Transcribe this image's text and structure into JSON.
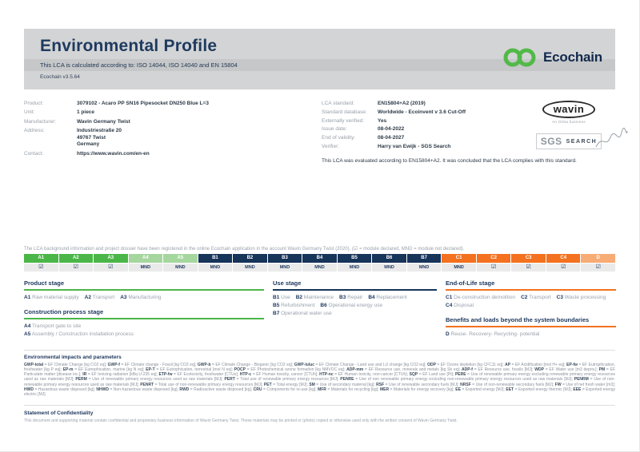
{
  "header": {
    "title": "Environmental Profile",
    "subtitle": "This LCA is calculated according to: ISO 14044, ISO 14040 and EN 15804",
    "version": "Ecochain v3.5.64",
    "logo_text": "Ecochain"
  },
  "product_info": {
    "rows": [
      {
        "label": "Product:",
        "value": "3079102 - Acaro PP SN16 Pipesocket DN250 Blue L=3"
      },
      {
        "label": "Unit:",
        "value": "1 piece"
      },
      {
        "label": "Manufacturer:",
        "value": "Wavin Germany Twist"
      },
      {
        "label": "Address:",
        "value": "Industriestraße 20\n49767 Twist\nGermany"
      },
      {
        "label": "Contact:",
        "value": "https://www.wavin.com/en-en"
      }
    ]
  },
  "lca_info": {
    "rows": [
      {
        "label": "LCA standard:",
        "value": "EN15804+A2 (2019)"
      },
      {
        "label": "Standard database:",
        "value": "Worldwide - Ecoinvent v 3.6 Cut-Off"
      },
      {
        "label": "Externally verified:",
        "value": "Yes"
      },
      {
        "label": "Issue date:",
        "value": "08-04-2022"
      },
      {
        "label": "End of validity:",
        "value": "08-04-2027"
      },
      {
        "label": "Verifier:",
        "value": "Harry van Ewijk - SGS Search"
      }
    ],
    "evaluation_note": "This LCA was evaluated according to EN15804+A2. It was concluded that the LCA complies with this standard."
  },
  "logos": {
    "wavin_text": "wavin",
    "wavin_tagline": "An Orbia business",
    "sgs_text": "SGS",
    "search_text": "SEARCH"
  },
  "registration_note": "The LCA background information and project dossier have been registered in the online Ecochain application in the account Wavin Germany Twist (2020). (☑ = module declared, MND = module not declared).",
  "modules": {
    "check_symbol": "☑",
    "mnd_label": "MND",
    "cells": [
      {
        "id": "A1",
        "group": "green",
        "declared": true
      },
      {
        "id": "A2",
        "group": "green",
        "declared": true
      },
      {
        "id": "A3",
        "group": "green",
        "declared": true
      },
      {
        "id": "A4",
        "group": "lightgreen",
        "declared": false
      },
      {
        "id": "A5",
        "group": "lightgreen",
        "declared": false
      },
      {
        "id": "B1",
        "group": "navy",
        "declared": false
      },
      {
        "id": "B2",
        "group": "navy",
        "declared": false
      },
      {
        "id": "B3",
        "group": "navy",
        "declared": false
      },
      {
        "id": "B4",
        "group": "navy",
        "declared": false
      },
      {
        "id": "B5",
        "group": "navy",
        "declared": false
      },
      {
        "id": "B6",
        "group": "navy",
        "declared": false
      },
      {
        "id": "B7",
        "group": "navy",
        "declared": false
      },
      {
        "id": "C1",
        "group": "orange",
        "declared": false
      },
      {
        "id": "C2",
        "group": "orange",
        "declared": true
      },
      {
        "id": "C3",
        "group": "orange",
        "declared": true
      },
      {
        "id": "C4",
        "group": "orange",
        "declared": true
      },
      {
        "id": "D",
        "group": "lightorange",
        "declared": true
      }
    ]
  },
  "stages": {
    "product": {
      "title": "Product stage",
      "items": [
        {
          "code": "A1",
          "label": "Raw material supply"
        },
        {
          "code": "A2",
          "label": "Transport"
        },
        {
          "code": "A3",
          "label": "Manufacturing"
        }
      ]
    },
    "construction": {
      "title": "Construction process stage",
      "items": [
        {
          "code": "A4",
          "label": "Transport gate to site"
        },
        {
          "code": "A5",
          "label": "Assembly / Construction installation process"
        }
      ]
    },
    "use": {
      "title": "Use stage",
      "items": [
        {
          "code": "B1",
          "label": "Use"
        },
        {
          "code": "B2",
          "label": "Maintenance"
        },
        {
          "code": "B3",
          "label": "Repair"
        },
        {
          "code": "B4",
          "label": "Replacement"
        },
        {
          "code": "B5",
          "label": "Refurbishment"
        },
        {
          "code": "B6",
          "label": "Operational energy use"
        },
        {
          "code": "B7",
          "label": "Operational water use"
        }
      ]
    },
    "end_of_life": {
      "title": "End-of-Life stage",
      "items": [
        {
          "code": "C1",
          "label": "De-construction demolition"
        },
        {
          "code": "C2",
          "label": "Transport"
        },
        {
          "code": "C3",
          "label": "Waste processing"
        },
        {
          "code": "C4",
          "label": "Disposal"
        }
      ]
    },
    "benefits": {
      "title": "Benefits and loads beyond the system boundaries",
      "items": [
        {
          "code": "D",
          "label": "Reuse- Recovery- Recycling- potential"
        }
      ]
    }
  },
  "glossary": {
    "title": "Environmental impacts and parameters",
    "terms": [
      {
        "abbr": "GWP-total",
        "def": "EF Climate Change [kg CO2 eq]"
      },
      {
        "abbr": "GWP-f",
        "def": "EF Climate change - Fossil [kg CO2 eq]"
      },
      {
        "abbr": "GWP-b",
        "def": "EF Climate Change - Biogenic [kg CO2 eq]"
      },
      {
        "abbr": "GWP-luluc",
        "def": "EF Climate Change - Land use and LU change [kg CO2 eq]"
      },
      {
        "abbr": "ODP",
        "def": "EF Ozone depletion [kg CFC11 eq]"
      },
      {
        "abbr": "AP",
        "def": "EF Acidification [mol H+ eq]"
      },
      {
        "abbr": "EP-fw",
        "def": "EF Eutrophication, freshwater [kg P eq]"
      },
      {
        "abbr": "EP-m",
        "def": "EF Eutrophication, marine [kg N eq]"
      },
      {
        "abbr": "EP-T",
        "def": "EF Eutrophication, terrestrial [mol N eq]"
      },
      {
        "abbr": "POCP",
        "def": "EF Photochemical ozone formation [kg NMVOC eq]"
      },
      {
        "abbr": "ADP-mm",
        "def": "EF Resource use, minerals and metals [kg Sb eq]"
      },
      {
        "abbr": "ADP-f",
        "def": "EF Resource use, fossils [MJ]"
      },
      {
        "abbr": "WDP",
        "def": "EF Water use [m3 depriv.]"
      },
      {
        "abbr": "PM",
        "def": "EF Particulate matter [disease inc.]"
      },
      {
        "abbr": "IR",
        "def": "EF Ionizing radiation [kBq U-235 eq]"
      },
      {
        "abbr": "ETP-fw",
        "def": "EF Ecotoxicity, freshwater [CTUe]"
      },
      {
        "abbr": "HTP-c",
        "def": "EF Human toxicity, cancer [CTUh]"
      },
      {
        "abbr": "HTP-nc",
        "def": "EF Human toxicity, non-cancer [CTUh]"
      },
      {
        "abbr": "SQP",
        "def": "EF Land use [Pt]"
      },
      {
        "abbr": "PERE",
        "def": "Use of renewable primary energy excluding renewable primary energy resources used as raw materials [MJ]"
      },
      {
        "abbr": "PERM",
        "def": "Use of renewable primary energy resources used as raw materials [MJ]"
      },
      {
        "abbr": "PERT",
        "def": "Total use of renewable primary energy resources [MJ]"
      },
      {
        "abbr": "PENRE",
        "def": "Use of non renewable primary energy excluding non-renewable primary energy resources used as raw materials [MJ]"
      },
      {
        "abbr": "PENRM",
        "def": "Use of non-renewable primary energy resources used as raw materials [MJ]"
      },
      {
        "abbr": "PENRT",
        "def": "Total use of non-renewable primary energy resources [MJ]"
      },
      {
        "abbr": "PET",
        "def": "Total energy [MJ]"
      },
      {
        "abbr": "SM",
        "def": "Use of secondary material [kg]"
      },
      {
        "abbr": "RSF",
        "def": "Use of renewable secondary fuels [MJ]"
      },
      {
        "abbr": "NRSF",
        "def": "Use of non-renewable secondary fuels [MJ]"
      },
      {
        "abbr": "FW",
        "def": "Use of net fresh water [m3]"
      },
      {
        "abbr": "HWD",
        "def": "Hazardous waste disposed [kg]"
      },
      {
        "abbr": "NHWD",
        "def": "Non-hazardous waste disposed [kg]"
      },
      {
        "abbr": "RWD",
        "def": "Radioactive waste disposed [kg]"
      },
      {
        "abbr": "CRU",
        "def": "Components for re-use [kg]"
      },
      {
        "abbr": "MFR",
        "def": "Materials for recycling [kg]"
      },
      {
        "abbr": "MER",
        "def": "Materials for energy recovery [kg]"
      },
      {
        "abbr": "EE",
        "def": "Exported energy [MJ]"
      },
      {
        "abbr": "EET",
        "def": "Exported energy thermic [MJ]"
      },
      {
        "abbr": "EEE",
        "def": "Exported energy electric [MJ]"
      }
    ]
  },
  "confidentiality": {
    "title": "Statement of Confidentiality",
    "text": "This document and supporting material contain confidential and proprietary business information of Wavin Germany Twist. These materials may be printed or (photo) copied or otherwise used only with the written consent of Wavin Germany Twist."
  },
  "colors": {
    "brand_green": "#52b948",
    "brand_navy": "#12294d",
    "module_green": "#4bb648",
    "module_light_green": "#a5d69e",
    "module_navy": "#173459",
    "module_orange": "#f3711f",
    "module_light_orange": "#f7ab75",
    "banner_gray": "#d3d4d5"
  }
}
